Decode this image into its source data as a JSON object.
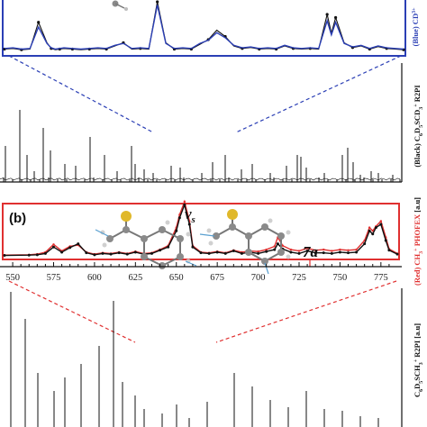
{
  "chart_data": [
    {
      "type": "line",
      "panel": "a-top",
      "ylabel_prefix": "(Blue) CD",
      "ylabel_sup": "3",
      "ylabel_plus": "+",
      "series": [
        {
          "name": "black",
          "color": "#111111",
          "x": [
            0,
            10,
            20,
            30,
            40,
            50,
            55,
            60,
            65,
            70,
            80,
            90,
            100,
            110,
            120,
            130,
            140,
            150,
            160,
            170,
            180,
            190,
            200,
            210,
            220,
            230,
            240,
            250,
            260,
            270,
            280,
            290,
            300,
            310,
            320,
            330,
            340,
            350,
            360,
            370,
            380,
            385,
            390,
            400,
            410,
            420,
            430,
            440,
            450,
            460,
            470
          ],
          "y": [
            10,
            12,
            8,
            10,
            95,
            30,
            12,
            8,
            10,
            12,
            10,
            8,
            10,
            12,
            10,
            20,
            30,
            10,
            12,
            10,
            160,
            30,
            10,
            12,
            10,
            25,
            40,
            70,
            50,
            20,
            12,
            15,
            10,
            12,
            10,
            20,
            12,
            10,
            12,
            10,
            120,
            60,
            110,
            30,
            15,
            20,
            10,
            18,
            12,
            10,
            8
          ]
        },
        {
          "name": "blue",
          "color": "#2b3fb5",
          "x": [
            0,
            10,
            20,
            30,
            40,
            50,
            55,
            60,
            65,
            70,
            80,
            90,
            100,
            110,
            120,
            130,
            140,
            150,
            160,
            170,
            180,
            190,
            200,
            210,
            220,
            230,
            240,
            250,
            260,
            270,
            280,
            290,
            300,
            310,
            320,
            330,
            340,
            350,
            360,
            370,
            380,
            385,
            390,
            400,
            410,
            420,
            430,
            440,
            450,
            460,
            470
          ],
          "y": [
            12,
            14,
            10,
            12,
            80,
            28,
            14,
            10,
            12,
            14,
            12,
            10,
            12,
            14,
            12,
            22,
            28,
            12,
            14,
            12,
            150,
            28,
            12,
            14,
            12,
            28,
            38,
            62,
            46,
            22,
            14,
            17,
            12,
            14,
            12,
            22,
            14,
            12,
            14,
            12,
            100,
            55,
            95,
            28,
            17,
            22,
            12,
            20,
            14,
            12,
            10
          ]
        }
      ]
    },
    {
      "type": "line",
      "panel": "a-bottom",
      "ylabel_prefix": "(Black) C",
      "ylabel_parts": [
        "6",
        "D",
        "5",
        "SCD",
        "3",
        "+"
      ],
      "ylabel_suffix": "R2PI",
      "series": [
        {
          "name": "black",
          "color": "#111111"
        }
      ]
    },
    {
      "type": "line",
      "panel": "b",
      "panel_label": "(b)",
      "ylabel": "(Red) CH",
      "ylabel_sup": "3",
      "ylabel_plus": "+",
      "ylabel_suffix": "PHOFEX",
      "ylabel_unit": "[a.u]",
      "annotations": [
        {
          "text": "ν",
          "sub": "s"
        },
        {
          "text": "7a"
        }
      ],
      "xticks": [
        550,
        575,
        600,
        625,
        650,
        675,
        700,
        725,
        750,
        775
      ],
      "xlim": [
        545,
        785
      ],
      "series": [
        {
          "name": "black",
          "color": "#111111",
          "x": [
            545,
            560,
            565,
            570,
            575,
            580,
            585,
            590,
            595,
            600,
            605,
            610,
            615,
            620,
            625,
            630,
            635,
            640,
            645,
            650,
            652,
            655,
            658,
            660,
            665,
            670,
            675,
            680,
            685,
            690,
            695,
            700,
            705,
            710,
            712,
            715,
            720,
            725,
            730,
            735,
            740,
            745,
            750,
            755,
            760,
            765,
            768,
            770,
            772,
            775,
            778,
            780,
            785
          ],
          "y": [
            4,
            5,
            6,
            10,
            30,
            14,
            28,
            40,
            12,
            6,
            10,
            8,
            12,
            8,
            14,
            8,
            10,
            20,
            30,
            80,
            120,
            160,
            100,
            30,
            12,
            10,
            14,
            10,
            18,
            10,
            14,
            10,
            16,
            22,
            40,
            24,
            14,
            10,
            18,
            12,
            12,
            10,
            14,
            12,
            14,
            40,
            80,
            70,
            90,
            100,
            50,
            20,
            8
          ]
        },
        {
          "name": "red",
          "color": "#e03030",
          "x": [
            545,
            560,
            565,
            570,
            575,
            580,
            585,
            590,
            595,
            600,
            605,
            610,
            615,
            620,
            625,
            630,
            635,
            640,
            645,
            650,
            652,
            655,
            658,
            660,
            665,
            670,
            675,
            680,
            685,
            690,
            695,
            700,
            705,
            710,
            712,
            715,
            720,
            725,
            730,
            735,
            740,
            745,
            750,
            755,
            760,
            765,
            768,
            770,
            772,
            775,
            778,
            780,
            785
          ],
          "y": [
            5,
            6,
            8,
            14,
            38,
            18,
            32,
            36,
            14,
            8,
            12,
            10,
            14,
            10,
            16,
            10,
            12,
            22,
            34,
            90,
            130,
            170,
            110,
            34,
            14,
            12,
            16,
            12,
            20,
            14,
            18,
            16,
            22,
            32,
            60,
            34,
            22,
            18,
            26,
            20,
            22,
            18,
            22,
            20,
            22,
            50,
            90,
            80,
            94,
            110,
            60,
            24,
            10
          ]
        }
      ]
    },
    {
      "type": "bar",
      "panel": "b-bottom",
      "ylabel_unit": "[a.u]",
      "ylabel_suffix": "R2PI",
      "ylabel_parts": [
        "C",
        "6",
        "D",
        "5",
        "SCH",
        "3",
        "+"
      ],
      "series": [
        {
          "name": "black",
          "color": "#111111"
        }
      ]
    }
  ]
}
